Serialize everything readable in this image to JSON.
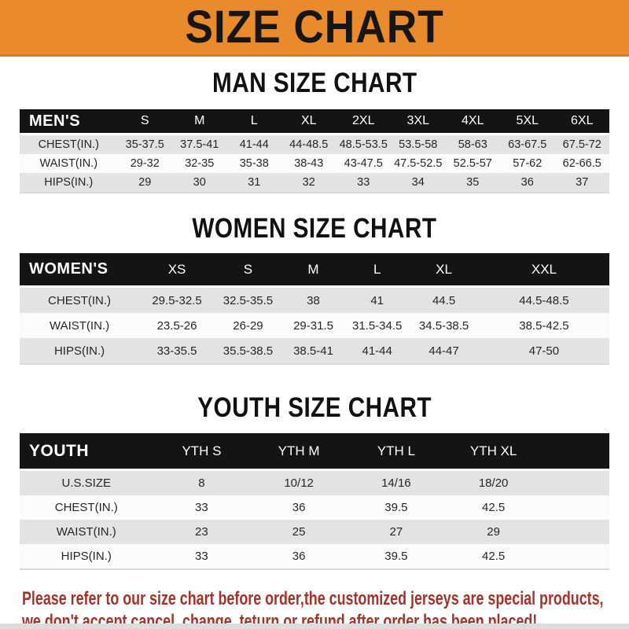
{
  "banner": {
    "title": "SIZE CHART"
  },
  "colors": {
    "banner_bg": "#e98a2c",
    "table_header_bg": "#141414",
    "row_stripe": "#e3e3e3",
    "note_text": "#a53229"
  },
  "sections": {
    "men": {
      "heading": "MAN SIZE CHART",
      "table": {
        "label": "MEN'S",
        "sizes": [
          "S",
          "M",
          "L",
          "XL",
          "2XL",
          "3XL",
          "4XL",
          "5XL",
          "6XL"
        ],
        "rows": [
          {
            "label": "CHEST(IN.)",
            "values": [
              "35-37.5",
              "37.5-41",
              "41-44",
              "44-48.5",
              "48.5-53.5",
              "53.5-58",
              "58-63",
              "63-67.5",
              "67.5-72"
            ]
          },
          {
            "label": "WAIST(IN.)",
            "values": [
              "29-32",
              "32-35",
              "35-38",
              "38-43",
              "43-47.5",
              "47.5-52.5",
              "52.5-57",
              "57-62",
              "62-66.5"
            ]
          },
          {
            "label": "HIPS(IN.)",
            "values": [
              "29",
              "30",
              "31",
              "32",
              "33",
              "34",
              "35",
              "36",
              "37"
            ]
          }
        ]
      }
    },
    "women": {
      "heading": "WOMEN SIZE CHART",
      "table": {
        "label": "WOMEN'S",
        "sizes": [
          "XS",
          "S",
          "M",
          "L",
          "XL",
          "XXL"
        ],
        "rows": [
          {
            "label": "CHEST(IN.)",
            "values": [
              "29.5-32.5",
              "32.5-35.5",
              "38",
              "41",
              "44.5",
              "44.5-48.5"
            ]
          },
          {
            "label": "WAIST(IN.)",
            "values": [
              "23.5-26",
              "26-29",
              "29-31.5",
              "31.5-34.5",
              "34.5-38.5",
              "38.5-42.5"
            ]
          },
          {
            "label": "HIPS(IN.)",
            "values": [
              "33-35.5",
              "35.5-38.5",
              "38.5-41",
              "41-44",
              "44-47",
              "47-50"
            ]
          }
        ]
      }
    },
    "youth": {
      "heading": "YOUTH SIZE CHART",
      "table": {
        "label": "YOUTH",
        "sizes": [
          "YTH S",
          "YTH M",
          "YTH L",
          "YTH XL"
        ],
        "rows": [
          {
            "label": "U.S.SIZE",
            "values": [
              "8",
              "10/12",
              "14/16",
              "18/20"
            ]
          },
          {
            "label": "CHEST(IN.)",
            "values": [
              "33",
              "36",
              "39.5",
              "42.5"
            ]
          },
          {
            "label": "WAIST(IN.)",
            "values": [
              "23",
              "25",
              "27",
              "29"
            ]
          },
          {
            "label": "HIPS(IN.)",
            "values": [
              "33",
              "36",
              "39.5",
              "42.5"
            ]
          }
        ]
      }
    }
  },
  "footer": {
    "line1": "Please refer to our size chart before order,the customized jerseys are special products,",
    "line2": "we don't accept cancel, change, teturn or refund after order has been placed!"
  }
}
